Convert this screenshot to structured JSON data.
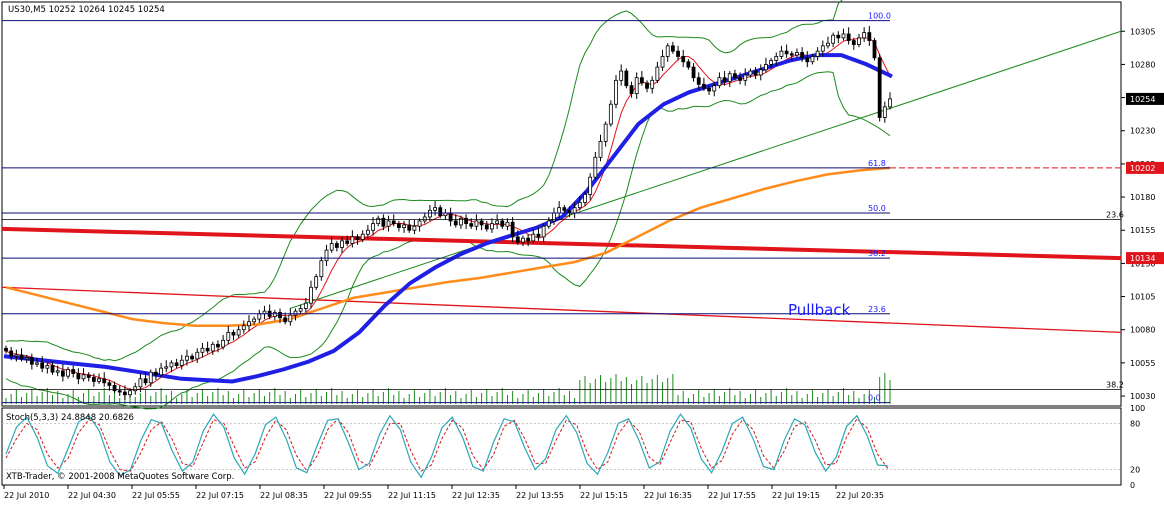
{
  "header": "US30,M5  10252 10264 10245 10254",
  "indicator_label": "Stoch(5,3,3) 24.8848 20.6826",
  "watermark": "XTB-Trader, © 2001-2008 MetaQuotes Software Corp.",
  "annotation": "Pullback",
  "colors": {
    "sma_thick": "#1f1fe6",
    "sma_200": "#ff8c1a",
    "red_line": "#e0141b",
    "bollinger": "#1c8a1c",
    "trend_line": "#1c8a1c",
    "fib_lines": "#0b0b7a",
    "stoch_main": "#2aa8b8",
    "stoch_signal": "#d01a1a",
    "volume": "#1c8a1c",
    "candle": "#000000"
  },
  "chart_data": [
    {
      "type": "candlestick",
      "symbol": "US30",
      "timeframe": "M5",
      "ohlc_last": {
        "open": 10252,
        "high": 10264,
        "low": 10245,
        "close": 10254
      },
      "y_ticks": [
        10030,
        10055,
        10080,
        10105,
        10130,
        10155,
        10180,
        10205,
        10230,
        10255,
        10280,
        10305
      ],
      "ylim": [
        10024,
        10315
      ],
      "x_ticks": [
        "22 Jul 2010",
        "22 Jul 04:30",
        "22 Jul 05:55",
        "22 Jul 07:15",
        "22 Jul 08:35",
        "22 Jul 09:55",
        "22 Jul 11:15",
        "22 Jul 12:35",
        "22 Jul 13:55",
        "22 Jul 15:15",
        "22 Jul 16:35",
        "22 Jul 17:55",
        "22 Jul 19:15",
        "22 Jul 20:35"
      ],
      "price_labels": [
        {
          "text": "10254",
          "value": 10254,
          "style": "black"
        },
        {
          "text": "10202",
          "value": 10202,
          "style": "red"
        },
        {
          "text": "10134",
          "value": 10134,
          "style": "red"
        }
      ],
      "fibonacci_levels": [
        {
          "label": "100.0",
          "value": 10313
        },
        {
          "label": "61.8",
          "value": 10202
        },
        {
          "label": "50.0",
          "value": 10168
        },
        {
          "label": "38.2",
          "value": 10134
        },
        {
          "label": "23.6",
          "value": 10092
        },
        {
          "label": "0.0",
          "value": 10025
        }
      ],
      "fib_side_labels": [
        {
          "label": "23.6",
          "value": 10163
        },
        {
          "label": "38.2",
          "value": 10035
        }
      ],
      "close_series": [
        10064,
        10060,
        10061,
        10058,
        10059,
        10054,
        10055,
        10051,
        10053,
        10048,
        10049,
        10045,
        10050,
        10047,
        10043,
        10046,
        10044,
        10041,
        10043,
        10040,
        10038,
        10034,
        10033,
        10031,
        10034,
        10037,
        10043,
        10040,
        10048,
        10046,
        10051,
        10052,
        10055,
        10053,
        10057,
        10060,
        10058,
        10063,
        10066,
        10064,
        10069,
        10067,
        10072,
        10078,
        10076,
        10080,
        10083,
        10086,
        10088,
        10092,
        10094,
        10090,
        10093,
        10089,
        10086,
        10091,
        10094,
        10096,
        10100,
        10112,
        10120,
        10132,
        10140,
        10145,
        10142,
        10147,
        10145,
        10150,
        10148,
        10152,
        10155,
        10160,
        10164,
        10158,
        10162,
        10160,
        10157,
        10159,
        10155,
        10158,
        10162,
        10165,
        10170,
        10172,
        10166,
        10168,
        10162,
        10159,
        10164,
        10160,
        10158,
        10162,
        10159,
        10156,
        10160,
        10162,
        10158,
        10161,
        10150,
        10146,
        10149,
        10147,
        10152,
        10150,
        10158,
        10162,
        10168,
        10172,
        10170,
        10168,
        10172,
        10176,
        10182,
        10195,
        10210,
        10222,
        10235,
        10250,
        10268,
        10275,
        10264,
        10258,
        10270,
        10266,
        10262,
        10268,
        10278,
        10286,
        10294,
        10290,
        10286,
        10282,
        10278,
        10270,
        10265,
        10262,
        10260,
        10264,
        10270,
        10267,
        10273,
        10270,
        10268,
        10272,
        10275,
        10272,
        10276,
        10280,
        10283,
        10286,
        10290,
        10288,
        10287,
        10289,
        10285,
        10282,
        10286,
        10290,
        10294,
        10296,
        10302,
        10300,
        10303,
        10298,
        10295,
        10300,
        10304,
        10298,
        10285,
        10240,
        10248,
        10254
      ],
      "sma_thick": [
        10060,
        10058,
        10056,
        10054,
        10052,
        10049,
        10046,
        10043,
        10042,
        10041,
        10045,
        10050,
        10056,
        10064,
        10078,
        10098,
        10115,
        10127,
        10137,
        10145,
        10151,
        10157,
        10165,
        10185,
        10210,
        10235,
        10250,
        10259,
        10265,
        10271,
        10277,
        10283,
        10287,
        10287,
        10280,
        10271
      ],
      "sma_200": [
        10112,
        10106,
        10100,
        10094,
        10088,
        10085,
        10083,
        10083,
        10084,
        10088,
        10096,
        10104,
        10108,
        10112,
        10116,
        10119,
        10123,
        10127,
        10131,
        10138,
        10150,
        10162,
        10172,
        10179,
        10186,
        10192,
        10197,
        10200,
        10202
      ],
      "red_line_series": [
        {
          "name": "",
          "start": 10156,
          "end": 10134
        },
        {
          "name": "",
          "start": 10112,
          "end": 10078
        }
      ],
      "trend_line": {
        "start": 10096,
        "end": 10305
      },
      "bollinger": {
        "upper_max": 10314,
        "lower_min": 10028
      }
    },
    {
      "type": "line",
      "title": "Stoch(5,3,3) 24.8848 20.6826",
      "y_ticks": [
        100,
        80,
        20,
        0
      ],
      "ylim": [
        0,
        100
      ],
      "series": [
        {
          "name": "Main",
          "values": [
            40,
            75,
            88,
            62,
            25,
            15,
            48,
            82,
            90,
            70,
            30,
            12,
            20,
            58,
            85,
            80,
            45,
            18,
            30,
            70,
            92,
            75,
            35,
            14,
            40,
            78,
            88,
            60,
            22,
            16,
            52,
            84,
            86,
            55,
            20,
            28,
            66,
            90,
            72,
            30,
            10,
            36,
            74,
            88,
            62,
            24,
            18,
            56,
            86,
            82,
            48,
            20,
            34,
            72,
            90,
            68,
            28,
            14,
            42,
            80,
            86,
            58,
            22,
            30,
            70,
            92,
            74,
            34,
            16,
            44,
            80,
            88,
            60,
            24,
            20,
            58,
            86,
            78,
            42,
            18,
            36,
            76,
            90,
            64,
            26,
            25
          ]
        },
        {
          "name": "Signal",
          "values": [
            35,
            60,
            80,
            72,
            40,
            22,
            35,
            68,
            85,
            78,
            45,
            20,
            18,
            42,
            72,
            82,
            60,
            28,
            24,
            55,
            85,
            80,
            50,
            22,
            30,
            62,
            84,
            72,
            38,
            18,
            38,
            72,
            86,
            68,
            32,
            24,
            50,
            80,
            80,
            45,
            18,
            26,
            60,
            84,
            74,
            38,
            20,
            40,
            76,
            84,
            60,
            28,
            28,
            58,
            84,
            78,
            42,
            20,
            30,
            66,
            84,
            70,
            36,
            26,
            55,
            84,
            82,
            48,
            22,
            32,
            66,
            85,
            72,
            38,
            22,
            44,
            76,
            82,
            58,
            26,
            28,
            62,
            86,
            74,
            40,
            21
          ]
        }
      ]
    }
  ]
}
